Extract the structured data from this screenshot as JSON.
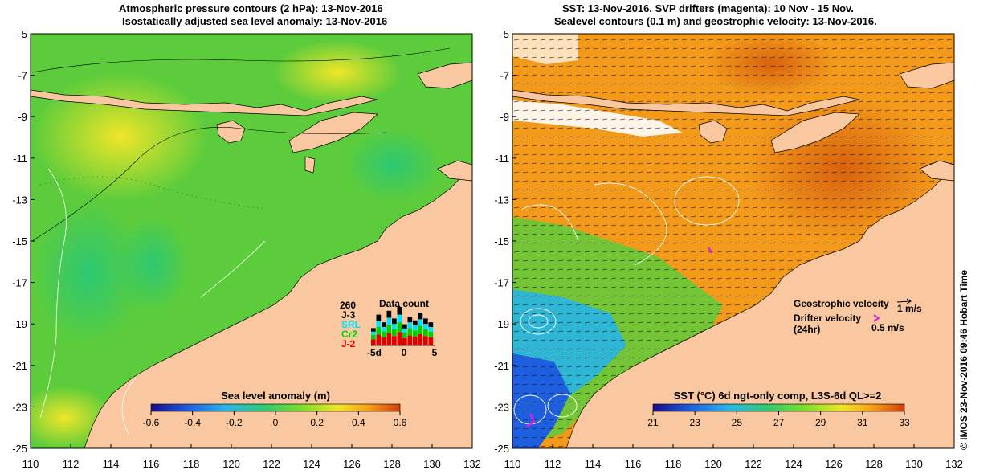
{
  "left_panel": {
    "title_line1": "Atmospheric pressure contours (2 hPa): 13-Nov-2016",
    "title_line2": "Isostatically adjusted sea level anomaly: 13-Nov-2016",
    "colorbar": {
      "title": "Sea level anomaly (m)",
      "ticks": [
        "-0.6",
        "-0.4",
        "-0.2",
        "0",
        "0.2",
        "0.4",
        "0.6"
      ]
    },
    "data_count": {
      "title": "Data count",
      "max_label": "260",
      "satellites": [
        "J-3",
        "SRL",
        "Cr2",
        "J-2"
      ],
      "x_ticks": [
        "-5d",
        "0",
        "5"
      ],
      "bar_heights": [
        0.45,
        0.8,
        0.6,
        0.9,
        0.7,
        1.0,
        0.55,
        0.75,
        0.65,
        0.85,
        0.7,
        0.6
      ],
      "colors": {
        "J-3": "#000000",
        "SRL": "#00e0ff",
        "Cr2": "#00d000",
        "J-2": "#e00000"
      }
    }
  },
  "right_panel": {
    "title_line1": "SST: 13-Nov-2016. SVP drifters (magenta): 10 Nov - 15 Nov.",
    "title_line2": "Sealevel contours (0.1 m) and geostrophic velocity: 13-Nov-2016.",
    "colorbar": {
      "title": "SST (°C) 6d ngt-only comp, L3S-6d QL>=2",
      "ticks": [
        "21",
        "23",
        "25",
        "27",
        "29",
        "31",
        "33"
      ]
    },
    "legend": {
      "geo_label": "Geostrophic velocity",
      "geo_scale": "1 m/s",
      "drifter_label_1": "Drifter velocity",
      "drifter_label_2": "(24hr)",
      "drifter_scale": "0.5 m/s"
    }
  },
  "axes": {
    "x_ticks": [
      "110",
      "112",
      "114",
      "116",
      "118",
      "120",
      "122",
      "124",
      "126",
      "128",
      "130",
      "132"
    ],
    "y_ticks": [
      "-5",
      "-7",
      "-9",
      "-11",
      "-13",
      "-15",
      "-17",
      "-19",
      "-21",
      "-23",
      "-25"
    ]
  },
  "credit": "©  IMOS 23-Nov-2016 09:46 Hobart Time",
  "colors": {
    "land": "#f9c8a0",
    "sla_scale": [
      "#1a0a8c",
      "#1e5fe0",
      "#28b4e6",
      "#2cc873",
      "#78dc28",
      "#f0e628",
      "#f5a014",
      "#d23c0a"
    ],
    "sst_scale": [
      "#1a0a8c",
      "#1e5fe0",
      "#28b4e6",
      "#2cc873",
      "#78dc28",
      "#f0e628",
      "#f5a014",
      "#d23c0a"
    ],
    "drifter": "#e020e0"
  }
}
